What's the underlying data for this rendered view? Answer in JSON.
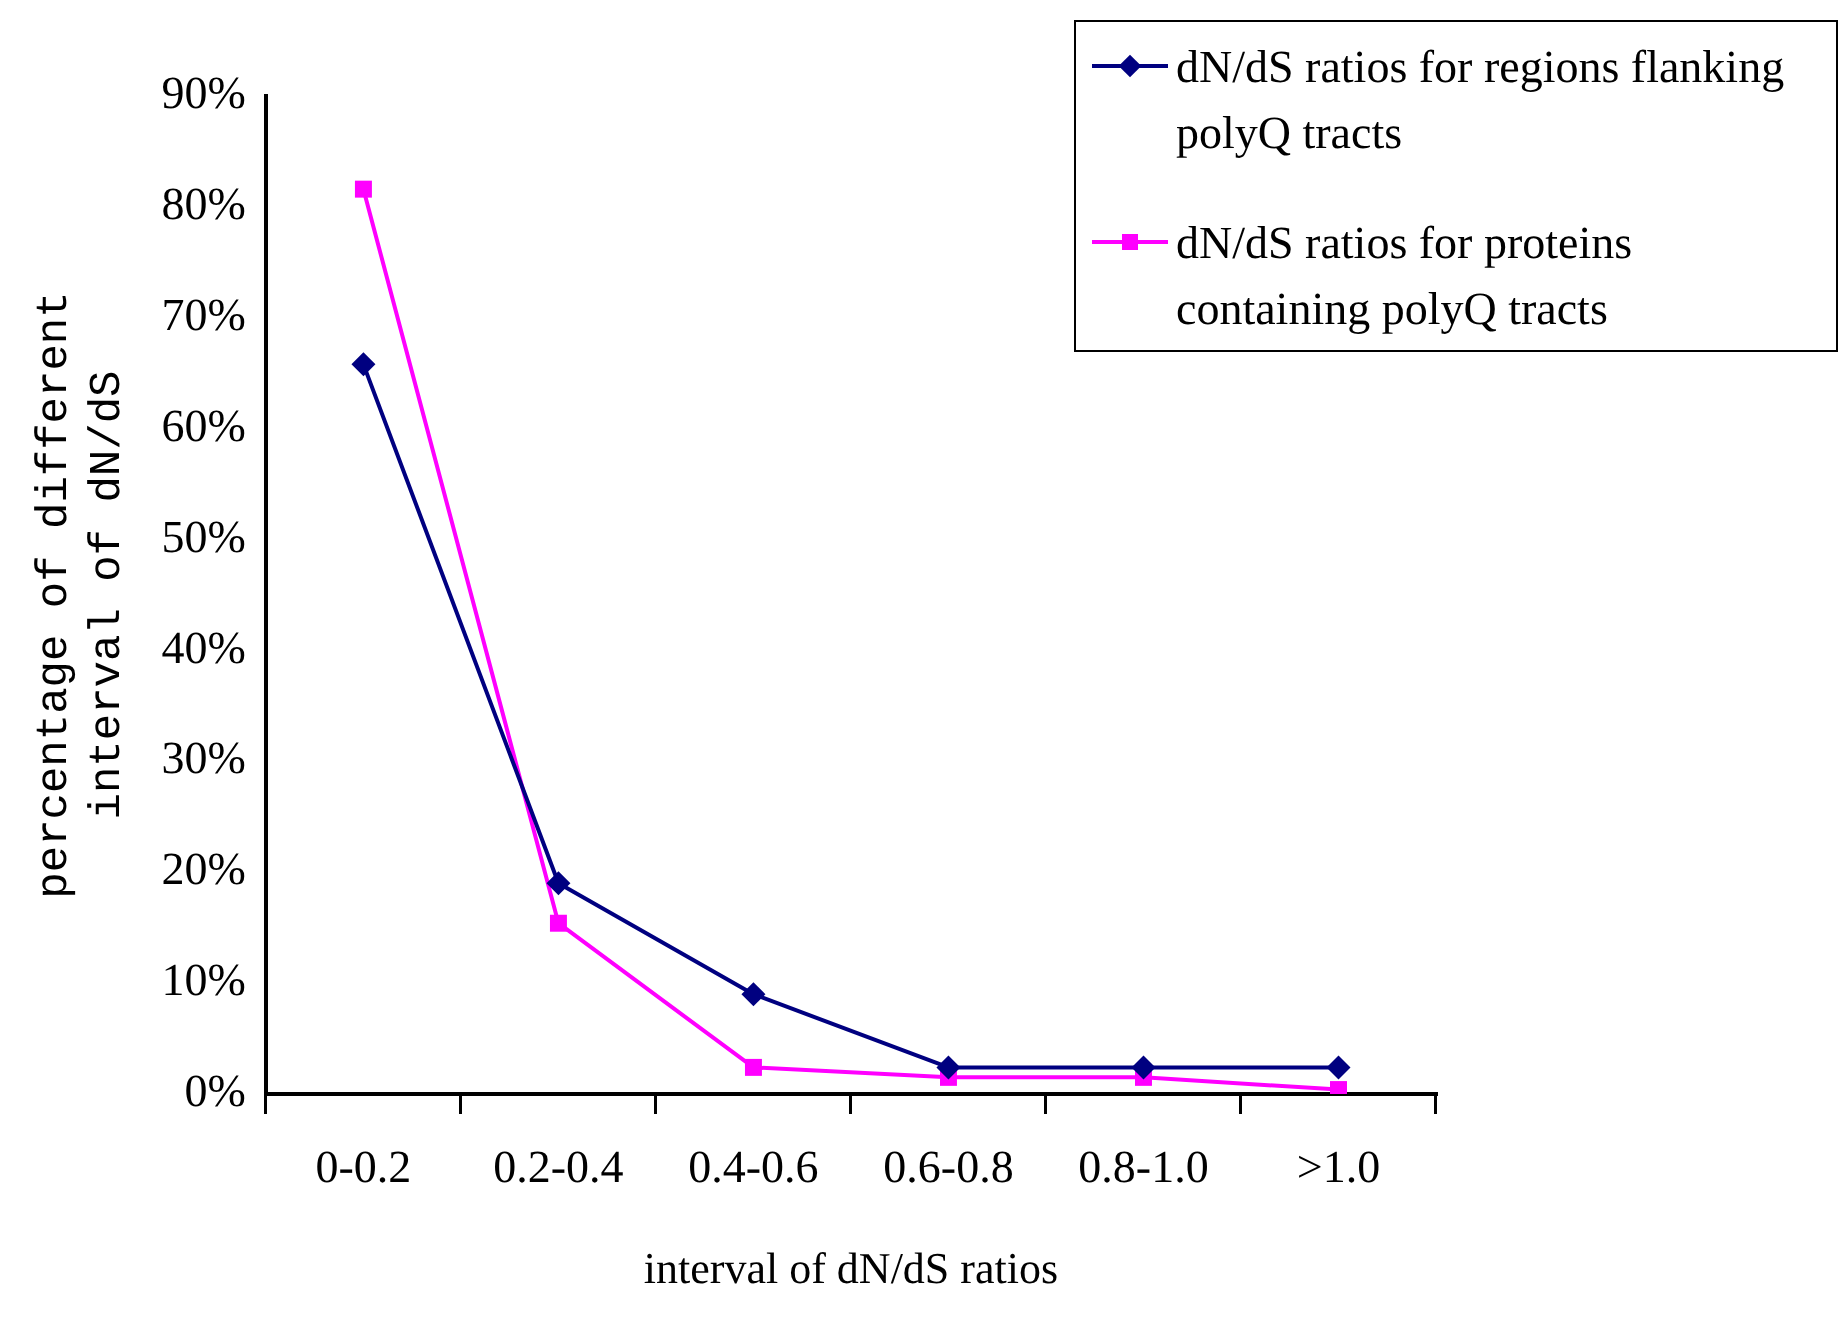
{
  "chart_data": {
    "type": "line",
    "xlabel": "interval of dN/dS ratios",
    "ylabel": "percentage of different\ninterval of dN/dS",
    "categories": [
      "0-0.2",
      "0.2-0.4",
      "0.4-0.6",
      "0.6-0.8",
      "0.8-1.0",
      ">1.0"
    ],
    "series": [
      {
        "name": "dN/dS ratios for regions flanking polyQ tracts",
        "color": "#000080",
        "marker": "diamond",
        "values": [
          65.8,
          19,
          9,
          2.4,
          2.4,
          2.4
        ]
      },
      {
        "name": "dN/dS ratios for proteins containing polyQ tracts",
        "color": "#ff00ff",
        "marker": "square",
        "values": [
          81.6,
          15.4,
          2.4,
          1.5,
          1.5,
          0.4
        ]
      }
    ],
    "ylim": [
      0,
      90
    ],
    "yticks": [
      {
        "value": 0,
        "label": "0%"
      },
      {
        "value": 10,
        "label": "10%"
      },
      {
        "value": 20,
        "label": "20%"
      },
      {
        "value": 30,
        "label": "30%"
      },
      {
        "value": 40,
        "label": "40%"
      },
      {
        "value": 50,
        "label": "50%"
      },
      {
        "value": 60,
        "label": "60%"
      },
      {
        "value": 70,
        "label": "70%"
      },
      {
        "value": 80,
        "label": "80%"
      },
      {
        "value": 90,
        "label": "90%"
      }
    ],
    "grid": false,
    "legend": "top right"
  }
}
